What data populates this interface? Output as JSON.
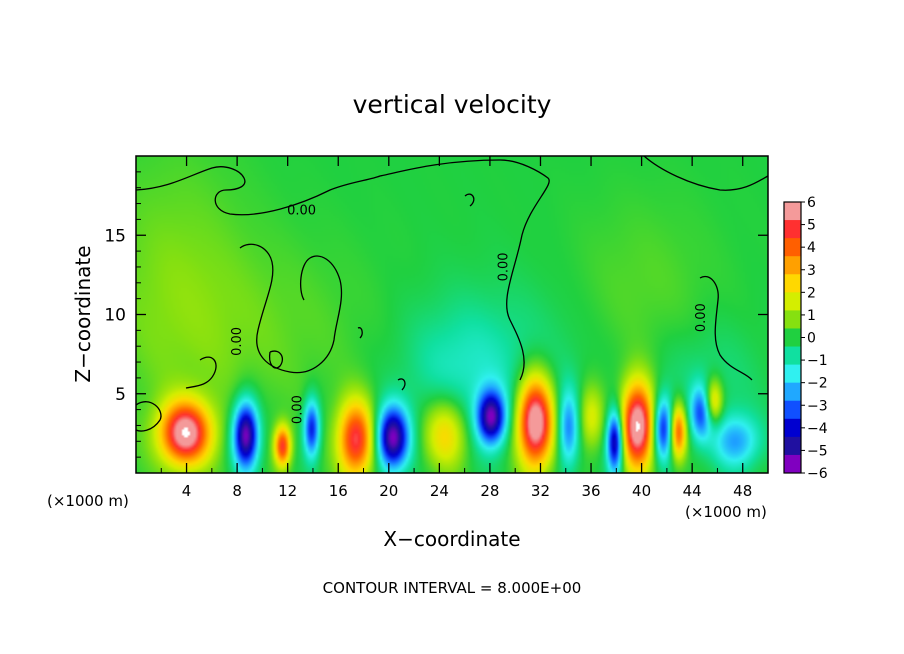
{
  "chart_data": {
    "type": "heatmap",
    "title": "vertical velocity",
    "xlabel": "X−coordinate",
    "ylabel": "Z−coordinate",
    "x_unit_left": "(×1000 m)",
    "x_unit_right": "(×1000 m)",
    "footer": "CONTOUR INTERVAL = 8.000E+00",
    "xlim": [
      0,
      50
    ],
    "ylim": [
      0,
      20
    ],
    "x_ticks": [
      4,
      8,
      12,
      16,
      20,
      24,
      28,
      32,
      36,
      40,
      44,
      48
    ],
    "x_tick_labels": [
      "4",
      "8",
      "12",
      "16",
      "20",
      "24",
      "28",
      "32",
      "36",
      "40",
      "44",
      "48"
    ],
    "y_ticks": [
      5,
      10,
      15
    ],
    "y_tick_labels": [
      "5",
      "10",
      "15"
    ],
    "contour_labels": [
      {
        "text": "0.00",
        "x": 13.1,
        "y": 16.3,
        "rotate": 0
      },
      {
        "text": "0.00",
        "x": 29.4,
        "y": 13.0,
        "rotate": -90
      },
      {
        "text": "0.00",
        "x": 45.0,
        "y": 9.8,
        "rotate": -90
      },
      {
        "text": "0.00",
        "x": 8.3,
        "y": 8.3,
        "rotate": -90
      },
      {
        "text": "0.00",
        "x": 13.1,
        "y": 4.0,
        "rotate": -90
      }
    ],
    "colorbar": {
      "min": -6,
      "max": 6,
      "ticks": [
        "6",
        "5",
        "4",
        "3",
        "2",
        "1",
        "0",
        "−1",
        "−2",
        "−3",
        "−4",
        "−5",
        "−6"
      ],
      "colors": [
        "#f49a9a",
        "#ff3030",
        "#ff5f00",
        "#ffa000",
        "#ffd800",
        "#d4ee00",
        "#86e010",
        "#20d040",
        "#10e0a0",
        "#30f0f0",
        "#20a8ff",
        "#1050ff",
        "#0000d0",
        "#2010a0",
        "#8000c0"
      ]
    },
    "features": [
      {
        "x": 3.9,
        "z": 2.5,
        "sx": 1.4,
        "sz": 1.4,
        "w": 6.6
      },
      {
        "x": 8.7,
        "z": 2.4,
        "sx": 0.7,
        "sz": 1.5,
        "w": -6.2
      },
      {
        "x": 11.6,
        "z": 1.7,
        "sx": 0.45,
        "sz": 0.9,
        "w": 5.0
      },
      {
        "x": 13.9,
        "z": 2.8,
        "sx": 0.45,
        "sz": 1.3,
        "w": -4.2
      },
      {
        "x": 17.4,
        "z": 2.1,
        "sx": 1.0,
        "sz": 1.7,
        "w": 5.4
      },
      {
        "x": 20.3,
        "z": 2.2,
        "sx": 0.9,
        "sz": 1.4,
        "w": -6.0
      },
      {
        "x": 24.5,
        "z": 2.5,
        "sx": 1.2,
        "sz": 1.6,
        "w": 2.8
      },
      {
        "x": 28.1,
        "z": 3.5,
        "sx": 0.8,
        "sz": 1.2,
        "w": -5.5
      },
      {
        "x": 31.6,
        "z": 3.2,
        "sx": 1.0,
        "sz": 2.0,
        "w": 7.2
      },
      {
        "x": 34.2,
        "z": 2.8,
        "sx": 0.6,
        "sz": 1.7,
        "w": -3.0
      },
      {
        "x": 36.0,
        "z": 3.5,
        "sx": 0.7,
        "sz": 1.4,
        "w": 2.0
      },
      {
        "x": 37.9,
        "z": 2.0,
        "sx": 0.45,
        "sz": 1.4,
        "w": -5.4
      },
      {
        "x": 39.7,
        "z": 3.0,
        "sx": 0.9,
        "sz": 1.9,
        "w": 7.0
      },
      {
        "x": 41.7,
        "z": 2.8,
        "sx": 0.55,
        "sz": 1.4,
        "w": -4.2
      },
      {
        "x": 42.9,
        "z": 2.6,
        "sx": 0.45,
        "sz": 1.2,
        "w": 4.5
      },
      {
        "x": 44.7,
        "z": 3.8,
        "sx": 0.6,
        "sz": 1.2,
        "w": -3.2
      },
      {
        "x": 45.7,
        "z": 4.5,
        "sx": 0.5,
        "sz": 1.0,
        "w": 3.0
      },
      {
        "x": 47.5,
        "z": 2.0,
        "sx": 1.3,
        "sz": 1.2,
        "w": -2.6
      },
      {
        "x": 25.5,
        "z": 6.5,
        "sx": 3.2,
        "sz": 3.0,
        "w": -1.1
      },
      {
        "x": 31.0,
        "z": 7.0,
        "sx": 4.0,
        "sz": 3.5,
        "w": -0.5
      },
      {
        "x": 45.0,
        "z": 6.0,
        "sx": 3.0,
        "sz": 2.5,
        "w": -0.6
      },
      {
        "x": 10.0,
        "z": 9.0,
        "sx": 6.0,
        "sz": 4.0,
        "w": 0.5
      },
      {
        "x": 3.0,
        "z": 12.0,
        "sx": 4.0,
        "sz": 6.0,
        "w": 0.7
      },
      {
        "x": 40.0,
        "z": 11.5,
        "sx": 4.0,
        "sz": 4.0,
        "w": 0.45
      }
    ]
  }
}
